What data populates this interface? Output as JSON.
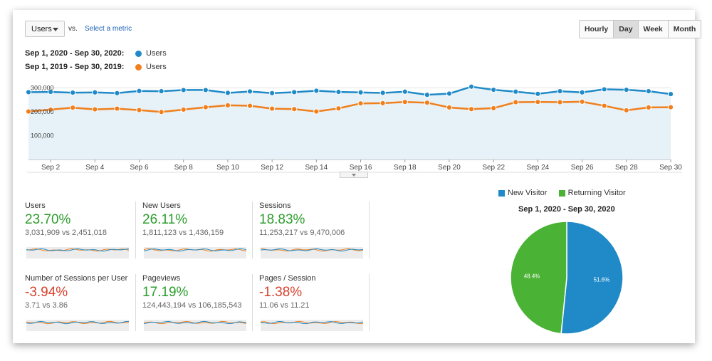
{
  "controls": {
    "metric_selected": "Users",
    "vs_label": "vs.",
    "select_metric_link": "Select a metric",
    "granularity": [
      "Hourly",
      "Day",
      "Week",
      "Month"
    ],
    "granularity_active": "Day"
  },
  "date_ranges": [
    {
      "label": "Sep 1, 2020 - Sep 30, 2020:",
      "metric": "Users",
      "color": "#1f8ac7"
    },
    {
      "label": "Sep 1, 2019 - Sep 30, 2019:",
      "metric": "Users",
      "color": "#f07f1c"
    }
  ],
  "chart_data": [
    {
      "type": "line",
      "title": "",
      "x": [
        "Sep 1",
        "Sep 2",
        "Sep 3",
        "Sep 4",
        "Sep 5",
        "Sep 6",
        "Sep 7",
        "Sep 8",
        "Sep 9",
        "Sep 10",
        "Sep 11",
        "Sep 12",
        "Sep 13",
        "Sep 14",
        "Sep 15",
        "Sep 16",
        "Sep 17",
        "Sep 18",
        "Sep 19",
        "Sep 20",
        "Sep 21",
        "Sep 22",
        "Sep 23",
        "Sep 24",
        "Sep 25",
        "Sep 26",
        "Sep 27",
        "Sep 28",
        "Sep 29",
        "Sep 30"
      ],
      "x_tick_labels": [
        "Sep 2",
        "Sep 4",
        "Sep 6",
        "Sep 8",
        "Sep 10",
        "Sep 12",
        "Sep 14",
        "Sep 16",
        "Sep 18",
        "Sep 20",
        "Sep 22",
        "Sep 24",
        "Sep 26",
        "Sep 28",
        "Sep 30"
      ],
      "y_tick_labels": [
        "300,000",
        "200,000",
        "100,000"
      ],
      "y_ticks": [
        300000,
        200000,
        100000
      ],
      "ylim": [
        0,
        340000
      ],
      "grid": true,
      "series": [
        {
          "name": "Users",
          "period": "Sep 1, 2020 - Sep 30, 2020",
          "color": "#1f8ac7",
          "area": true,
          "values": [
            282000,
            283000,
            280000,
            281000,
            278000,
            287000,
            286000,
            291000,
            291000,
            279000,
            285000,
            278000,
            282000,
            288000,
            283000,
            281000,
            279000,
            284000,
            271000,
            276000,
            305000,
            292000,
            284000,
            275000,
            286000,
            281000,
            294000,
            292000,
            286000,
            274000
          ]
        },
        {
          "name": "Users",
          "period": "Sep 1, 2019 - Sep 30, 2019",
          "color": "#f07f1c",
          "area": false,
          "values": [
            201000,
            209000,
            217000,
            210000,
            213000,
            207000,
            199000,
            209000,
            219000,
            227000,
            225000,
            213000,
            211000,
            201000,
            214000,
            235000,
            236000,
            241000,
            238000,
            218000,
            211000,
            215000,
            240000,
            241000,
            240000,
            242000,
            225000,
            206000,
            218000,
            219000
          ]
        }
      ]
    },
    {
      "type": "pie",
      "title": "Sep 1, 2020 - Sep 30, 2020",
      "categories": [
        "New Visitor",
        "Returning Visitor"
      ],
      "values": [
        51.6,
        48.4
      ],
      "value_labels": [
        "51.6%",
        "48.4%"
      ],
      "colors": [
        "#1f8ac7",
        "#4ab234"
      ],
      "legend_position": "top"
    }
  ],
  "scorecards": [
    {
      "name": "Users",
      "change": "23.70%",
      "direction": "up",
      "comparison": "3,031,909 vs 2,451,018"
    },
    {
      "name": "New Users",
      "change": "26.11%",
      "direction": "up",
      "comparison": "1,811,123 vs 1,436,159"
    },
    {
      "name": "Sessions",
      "change": "18.83%",
      "direction": "up",
      "comparison": "11,253,217 vs 9,470,006"
    },
    {
      "name": "Number of Sessions per User",
      "change": "-3.94%",
      "direction": "down",
      "comparison": "3.71 vs 3.86"
    },
    {
      "name": "Pageviews",
      "change": "17.19%",
      "direction": "up",
      "comparison": "124,443,194 vs 106,185,543"
    },
    {
      "name": "Pages / Session",
      "change": "-1.38%",
      "direction": "down",
      "comparison": "11.06 vs 11.21"
    }
  ],
  "colors": {
    "series_current": "#1f8ac7",
    "series_previous": "#f07f1c",
    "area_fill": "#e6f1f8",
    "positive": "#2c9e2c",
    "negative": "#d9412e"
  }
}
